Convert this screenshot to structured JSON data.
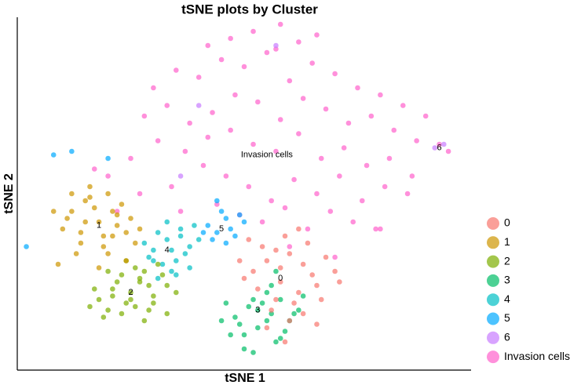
{
  "chart_data": {
    "type": "scatter",
    "title": "tSNE plots by Cluster",
    "x_label": "tSNE 1",
    "y_label": "tSNE 2",
    "xlim": [
      0,
      100
    ],
    "ylim": [
      0,
      100
    ],
    "legend": "right",
    "series": [
      {
        "name": "0",
        "color": "#F8766D",
        "x": [
          52,
          55,
          58,
          60,
          62,
          65,
          57,
          54,
          59,
          63,
          66,
          68,
          56,
          61,
          50,
          53,
          64,
          70,
          58,
          60,
          55,
          62,
          67,
          49,
          57,
          63,
          59,
          51,
          66,
          71
        ],
        "y": [
          28,
          31,
          25,
          33,
          22,
          27,
          20,
          35,
          38,
          30,
          24,
          32,
          17,
          19,
          26,
          23,
          36,
          28,
          29,
          14,
          12,
          40,
          20,
          31,
          34,
          16,
          8,
          37,
          13,
          25
        ]
      },
      {
        "name": "1",
        "color": "#CD9600",
        "x": [
          12,
          15,
          18,
          20,
          22,
          24,
          10,
          14,
          17,
          21,
          25,
          13,
          19,
          23,
          9,
          16,
          26,
          11,
          18,
          22,
          14,
          20,
          8,
          24,
          16,
          27,
          12,
          19,
          21,
          15
        ],
        "y": [
          45,
          48,
          42,
          50,
          44,
          39,
          40,
          36,
          46,
          38,
          43,
          33,
          35,
          47,
          30,
          52,
          36,
          43,
          29,
          41,
          39,
          33,
          45,
          31,
          49,
          40,
          50,
          38,
          45,
          42
        ]
      },
      {
        "name": "2",
        "color": "#7CAE00",
        "x": [
          18,
          21,
          24,
          27,
          30,
          33,
          20,
          23,
          26,
          29,
          32,
          16,
          22,
          25,
          28,
          31,
          19,
          24,
          27,
          35,
          21,
          30,
          17,
          26,
          23,
          29,
          33,
          25,
          20,
          28
        ],
        "y": [
          20,
          23,
          19,
          25,
          21,
          24,
          28,
          16,
          29,
          17,
          27,
          18,
          25,
          22,
          14,
          30,
          15,
          31,
          26,
          22,
          21,
          19,
          23,
          18,
          27,
          24,
          16,
          20,
          17,
          28
        ]
      },
      {
        "name": "3",
        "color": "#00BE67",
        "x": [
          48,
          51,
          53,
          56,
          58,
          60,
          46,
          50,
          55,
          57,
          62,
          49,
          52,
          54,
          59,
          61,
          47,
          56,
          53,
          50,
          58,
          55,
          45,
          63,
          52,
          57
        ],
        "y": [
          15,
          18,
          12,
          16,
          20,
          14,
          19,
          10,
          22,
          8,
          17,
          13,
          5,
          19,
          11,
          16,
          10,
          24,
          17,
          6,
          9,
          14,
          14,
          21,
          20,
          28
        ]
      },
      {
        "name": "4",
        "color": "#00BFC4",
        "x": [
          30,
          33,
          35,
          38,
          31,
          34,
          36,
          29,
          32,
          37,
          40,
          33,
          28,
          35,
          31,
          38,
          34,
          36,
          30,
          39
        ],
        "y": [
          34,
          37,
          31,
          35,
          39,
          28,
          40,
          32,
          30,
          33,
          37,
          42,
          36,
          27,
          26,
          29,
          34,
          38,
          31,
          41
        ]
      },
      {
        "name": "5",
        "color": "#00A9FF",
        "x": [
          42,
          44,
          46,
          48,
          43,
          45,
          47,
          50,
          41,
          44,
          49,
          46,
          8,
          12,
          2,
          20
        ],
        "y": [
          41,
          39,
          43,
          38,
          37,
          45,
          40,
          42,
          39,
          48,
          44,
          36,
          61,
          62,
          35,
          60
        ]
      },
      {
        "name": "6",
        "color": "#C77CFF",
        "x": [
          57,
          40,
          36,
          92,
          94
        ],
        "y": [
          92,
          75,
          55,
          63,
          64
        ]
      },
      {
        "name": "Invasion cells",
        "color": "#FF61CC",
        "x": [
          30,
          35,
          40,
          45,
          50,
          55,
          60,
          65,
          70,
          75,
          80,
          85,
          90,
          93,
          95,
          28,
          33,
          38,
          43,
          48,
          53,
          58,
          63,
          68,
          73,
          78,
          83,
          88,
          25,
          31,
          37,
          42,
          47,
          52,
          57,
          62,
          67,
          72,
          77,
          82,
          87,
          20,
          27,
          34,
          41,
          46,
          51,
          56,
          61,
          66,
          71,
          76,
          81,
          86,
          36,
          44,
          49,
          54,
          59,
          64,
          69,
          74,
          79,
          47,
          52,
          57,
          62,
          42,
          58,
          66,
          17,
          22,
          60,
          70,
          80
        ],
        "y": [
          80,
          85,
          83,
          88,
          86,
          90,
          82,
          87,
          84,
          80,
          78,
          75,
          72,
          64,
          62,
          72,
          75,
          70,
          73,
          78,
          76,
          71,
          77,
          74,
          70,
          72,
          68,
          65,
          60,
          65,
          62,
          66,
          68,
          64,
          62,
          67,
          60,
          63,
          58,
          60,
          55,
          55,
          50,
          52,
          58,
          55,
          52,
          48,
          54,
          50,
          55,
          48,
          52,
          50,
          45,
          47,
          44,
          42,
          46,
          40,
          45,
          42,
          40,
          94,
          96,
          91,
          93,
          92,
          98,
          95,
          57,
          45,
          35,
          32,
          40
        ]
      }
    ],
    "annotations": [
      {
        "text": "0",
        "x": 58,
        "y": 26
      },
      {
        "text": "1",
        "x": 18,
        "y": 41
      },
      {
        "text": "2",
        "x": 25,
        "y": 22
      },
      {
        "text": "3",
        "x": 53,
        "y": 17
      },
      {
        "text": "4",
        "x": 33,
        "y": 34
      },
      {
        "text": "5",
        "x": 45,
        "y": 40
      },
      {
        "text": "6",
        "x": 93,
        "y": 63
      },
      {
        "text": "Invasion cells",
        "x": 55,
        "y": 61
      }
    ]
  }
}
